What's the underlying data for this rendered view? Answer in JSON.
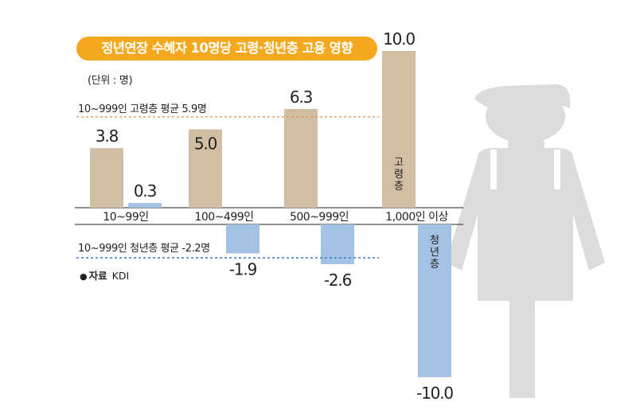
{
  "chart_data": {
    "type": "bar",
    "title": "정년연장 수혜자 10명당 고령·청년층 고용 영향",
    "unit_label": "(단위 : 명)",
    "categories": [
      "10~99인",
      "100~499인",
      "500~999인",
      "1,000인 이상"
    ],
    "series": [
      {
        "name": "고령층",
        "color": "#d2bfa3",
        "values": [
          3.8,
          5.0,
          6.3,
          10.0
        ],
        "labels": [
          "3.8",
          "5.0",
          "6.3",
          "10.0"
        ]
      },
      {
        "name": "청년층",
        "color": "#a3c2e4",
        "values": [
          0.3,
          -1.9,
          -2.6,
          -10.0
        ],
        "labels": [
          "0.3",
          "-1.9",
          "-2.6",
          "-10.0"
        ]
      }
    ],
    "reference_lines": [
      {
        "label": "10~999인 고령층 평균 5.9명",
        "value": 5.9,
        "color": "#e0955c"
      },
      {
        "label": "10~999인 청년층 평균 -2.2명",
        "value": -2.2,
        "color": "#3a78c6"
      }
    ],
    "ylim": [
      -10,
      10
    ],
    "grid": false,
    "source": {
      "prefix": "●",
      "label": "자료",
      "org": "KDI"
    }
  }
}
